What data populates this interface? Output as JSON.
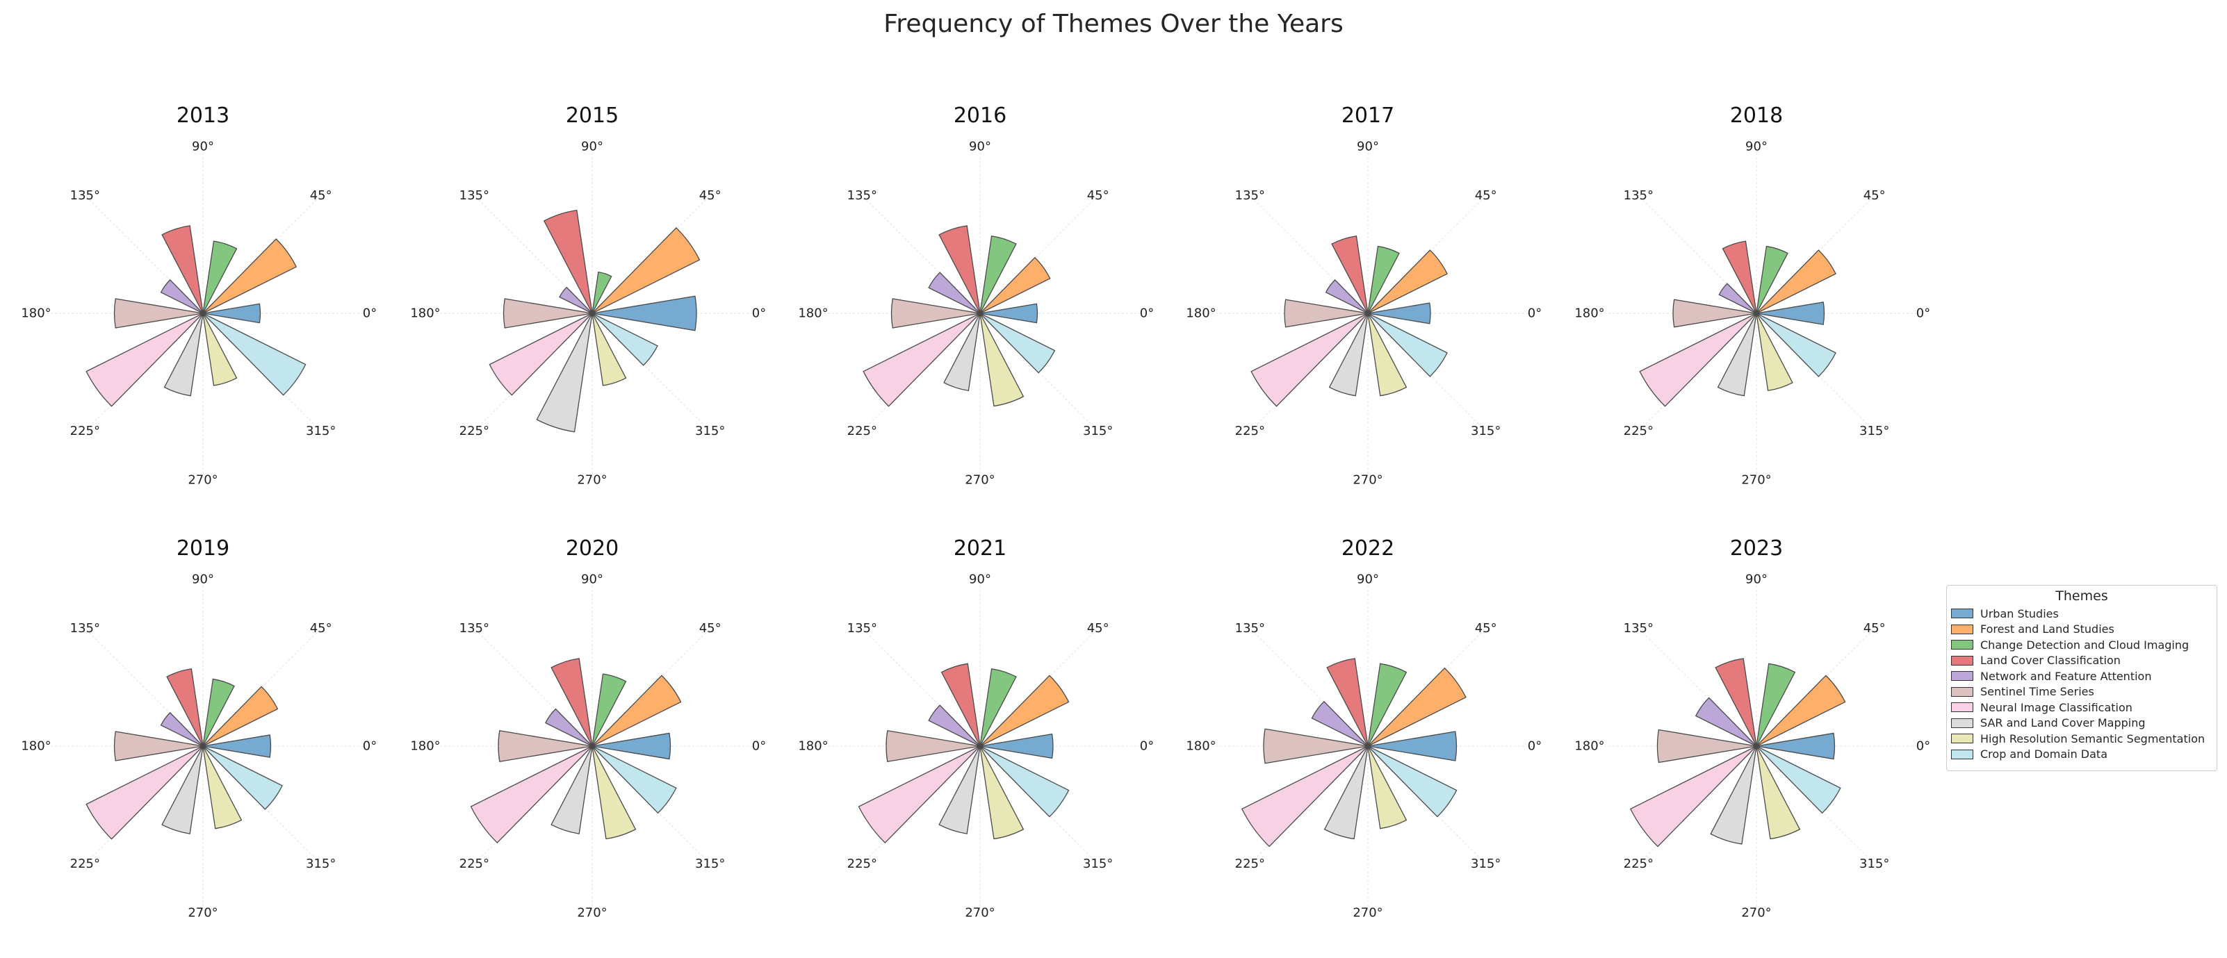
{
  "title": "Frequency of Themes Over the Years",
  "legend": {
    "title": "Themes",
    "items": [
      {
        "label": "Urban Studies",
        "color": "#76aad0"
      },
      {
        "label": "Forest and Land Studies",
        "color": "#feb06b"
      },
      {
        "label": "Change Detection and Cloud Imaging",
        "color": "#82c680"
      },
      {
        "label": "Land Cover Classification",
        "color": "#e57a7c"
      },
      {
        "label": "Network and Feature Attention",
        "color": "#bca7d8"
      },
      {
        "label": "Sentinel Time Series",
        "color": "#dcc2bf"
      },
      {
        "label": "Neural Image Classification",
        "color": "#f8d1e4"
      },
      {
        "label": "SAR and Land Cover Mapping",
        "color": "#dcdcdc"
      },
      {
        "label": "High Resolution Semantic Segmentation",
        "color": "#e8e8b6"
      },
      {
        "label": "Crop and Domain Data",
        "color": "#c2e6ed"
      }
    ]
  },
  "angle_labels": [
    "0°",
    "45°",
    "90°",
    "135°",
    "180°",
    "225°",
    "270°",
    "315°"
  ],
  "chart_data": {
    "type": "polar-bar",
    "title": "Frequency of Themes Over the Years",
    "legend_position": "right",
    "grid": true,
    "categories": [
      "Urban Studies",
      "Forest and Land Studies",
      "Change Detection and Cloud Imaging",
      "Land Cover Classification",
      "Network and Feature Attention",
      "Sentinel Time Series",
      "Neural Image Classification",
      "SAR and Land Cover Mapping",
      "High Resolution Semantic Segmentation",
      "Crop and Domain Data"
    ],
    "angles_deg": [
      0,
      36,
      72,
      108,
      144,
      180,
      216,
      252,
      288,
      324
    ],
    "panels": [
      {
        "title": "2013",
        "values": [
          55,
          100,
          70,
          85,
          45,
          85,
          125,
          80,
          70,
          110
        ]
      },
      {
        "title": "2015",
        "values": [
          100,
          115,
          40,
          100,
          35,
          85,
          110,
          115,
          70,
          70
        ]
      },
      {
        "title": "2016",
        "values": [
          55,
          75,
          75,
          85,
          55,
          85,
          125,
          75,
          90,
          80
        ]
      },
      {
        "title": "2017",
        "values": [
          60,
          85,
          65,
          75,
          45,
          80,
          125,
          80,
          80,
          85
        ]
      },
      {
        "title": "2018",
        "values": [
          65,
          85,
          65,
          70,
          40,
          80,
          125,
          80,
          75,
          85
        ]
      },
      {
        "title": "2019",
        "values": [
          65,
          80,
          65,
          75,
          45,
          85,
          125,
          85,
          80,
          85
        ]
      },
      {
        "title": "2020",
        "values": [
          75,
          95,
          70,
          85,
          50,
          90,
          130,
          85,
          90,
          90
        ]
      },
      {
        "title": "2021",
        "values": [
          70,
          95,
          75,
          80,
          55,
          90,
          130,
          85,
          90,
          95
        ]
      },
      {
        "title": "2022",
        "values": [
          85,
          105,
          80,
          85,
          60,
          100,
          135,
          90,
          80,
          95
        ]
      },
      {
        "title": "2023",
        "values": [
          75,
          95,
          80,
          85,
          65,
          95,
          135,
          95,
          90,
          90
        ]
      }
    ]
  }
}
